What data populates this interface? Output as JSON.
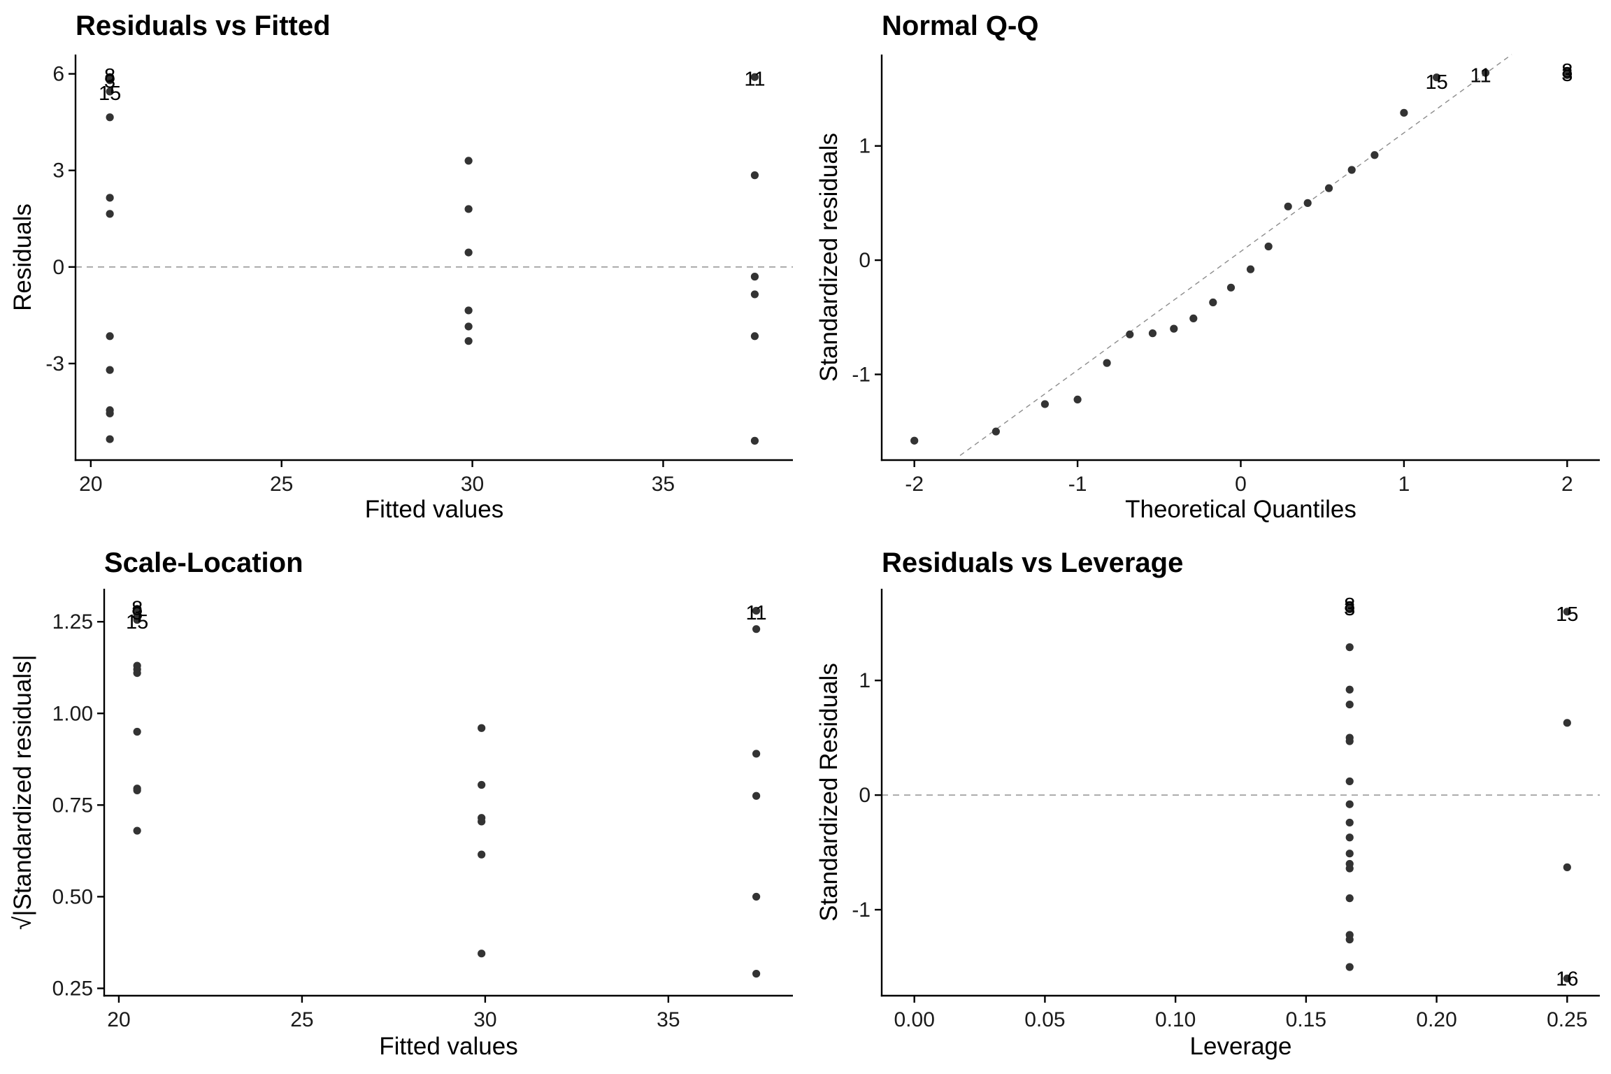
{
  "chart_data": [
    {
      "type": "scatter",
      "title": "Residuals vs Fitted",
      "xlabel": "Fitted values",
      "ylabel": "Residuals",
      "xlim": [
        19.6,
        38.4
      ],
      "ylim": [
        -6.0,
        6.6
      ],
      "xticks": [
        20,
        25,
        30,
        35
      ],
      "xtick_labels": [
        "20",
        "25",
        "30",
        "35"
      ],
      "yticks": [
        6,
        3,
        0,
        -3
      ],
      "ytick_labels": [
        "6",
        "3",
        "0",
        "-3"
      ],
      "reference_line": {
        "kind": "horizontal",
        "y": 0
      },
      "points": [
        {
          "x": 20.5,
          "y": 5.9
        },
        {
          "x": 20.5,
          "y": 5.8
        },
        {
          "x": 20.5,
          "y": 5.45
        },
        {
          "x": 20.5,
          "y": 4.65
        },
        {
          "x": 20.5,
          "y": 2.15
        },
        {
          "x": 20.5,
          "y": 1.65
        },
        {
          "x": 20.5,
          "y": -2.15
        },
        {
          "x": 20.5,
          "y": -3.2
        },
        {
          "x": 20.5,
          "y": -4.45
        },
        {
          "x": 20.5,
          "y": -4.55
        },
        {
          "x": 20.5,
          "y": -5.35
        },
        {
          "x": 29.9,
          "y": 3.3
        },
        {
          "x": 29.9,
          "y": 1.8
        },
        {
          "x": 29.9,
          "y": 0.45
        },
        {
          "x": 29.9,
          "y": -1.35
        },
        {
          "x": 29.9,
          "y": -1.85
        },
        {
          "x": 29.9,
          "y": -2.3
        },
        {
          "x": 37.4,
          "y": 5.9
        },
        {
          "x": 37.4,
          "y": 2.85
        },
        {
          "x": 37.4,
          "y": -0.3
        },
        {
          "x": 37.4,
          "y": -0.85
        },
        {
          "x": 37.4,
          "y": -2.15
        },
        {
          "x": 37.4,
          "y": -5.4
        }
      ],
      "point_labels": [
        {
          "text": "8",
          "x": 20.5,
          "y": 5.95
        },
        {
          "text": "3",
          "x": 20.5,
          "y": 5.78
        },
        {
          "text": "15",
          "x": 20.5,
          "y": 5.4
        },
        {
          "text": "11",
          "x": 37.4,
          "y": 5.85
        }
      ]
    },
    {
      "type": "scatter",
      "title": "Normal Q-Q",
      "xlabel": "Theoretical Quantiles",
      "ylabel": "Standardized residuals",
      "xlim": [
        -2.2,
        2.2
      ],
      "ylim": [
        -1.75,
        1.8
      ],
      "xticks": [
        -2,
        -1,
        0,
        1,
        2
      ],
      "xtick_labels": [
        "-2",
        "-1",
        "0",
        "1",
        "2"
      ],
      "yticks": [
        1,
        0,
        -1
      ],
      "ytick_labels": [
        "1",
        "0",
        "-1"
      ],
      "reference_line": {
        "kind": "line",
        "from": [
          -1.72,
          -1.71
        ],
        "to": [
          1.66,
          1.8
        ]
      },
      "points": [
        {
          "x": -2.0,
          "y": -1.58
        },
        {
          "x": -1.5,
          "y": -1.5
        },
        {
          "x": -1.2,
          "y": -1.26
        },
        {
          "x": -1.0,
          "y": -1.22
        },
        {
          "x": -0.82,
          "y": -0.9
        },
        {
          "x": -0.68,
          "y": -0.65
        },
        {
          "x": -0.54,
          "y": -0.64
        },
        {
          "x": -0.41,
          "y": -0.6
        },
        {
          "x": -0.29,
          "y": -0.51
        },
        {
          "x": -0.17,
          "y": -0.37
        },
        {
          "x": -0.06,
          "y": -0.24
        },
        {
          "x": 0.06,
          "y": -0.08
        },
        {
          "x": 0.17,
          "y": 0.12
        },
        {
          "x": 0.29,
          "y": 0.47
        },
        {
          "x": 0.41,
          "y": 0.5
        },
        {
          "x": 0.54,
          "y": 0.63
        },
        {
          "x": 0.68,
          "y": 0.79
        },
        {
          "x": 0.82,
          "y": 0.92
        },
        {
          "x": 1.0,
          "y": 1.29
        },
        {
          "x": 1.2,
          "y": 1.6
        },
        {
          "x": 1.5,
          "y": 1.64
        },
        {
          "x": 2.0,
          "y": 1.65
        },
        {
          "x": 2.0,
          "y": 1.62
        }
      ],
      "point_labels": [
        {
          "text": "15",
          "x": 1.2,
          "y": 1.56
        },
        {
          "text": "11",
          "x": 1.47,
          "y": 1.62
        },
        {
          "text": "8",
          "x": 2.0,
          "y": 1.66
        },
        {
          "text": "3",
          "x": 2.0,
          "y": 1.63
        }
      ]
    },
    {
      "type": "scatter",
      "title": "Scale-Location",
      "xlabel": "Fitted values",
      "ylabel": "√|Standardized residuals|",
      "xlim": [
        19.6,
        38.4
      ],
      "ylim": [
        0.23,
        1.34
      ],
      "xticks": [
        20,
        25,
        30,
        35
      ],
      "xtick_labels": [
        "20",
        "25",
        "30",
        "35"
      ],
      "yticks": [
        1.25,
        1.0,
        0.75,
        0.5,
        0.25
      ],
      "ytick_labels": [
        "1.25",
        "1.00",
        "0.75",
        "0.50",
        "0.25"
      ],
      "points": [
        {
          "x": 20.5,
          "y": 1.285
        },
        {
          "x": 20.5,
          "y": 1.27
        },
        {
          "x": 20.5,
          "y": 1.255
        },
        {
          "x": 20.5,
          "y": 1.13
        },
        {
          "x": 20.5,
          "y": 1.12
        },
        {
          "x": 20.5,
          "y": 1.11
        },
        {
          "x": 20.5,
          "y": 0.95
        },
        {
          "x": 20.5,
          "y": 0.795
        },
        {
          "x": 20.5,
          "y": 0.79
        },
        {
          "x": 20.5,
          "y": 0.68
        },
        {
          "x": 29.9,
          "y": 0.96
        },
        {
          "x": 29.9,
          "y": 0.805
        },
        {
          "x": 29.9,
          "y": 0.715
        },
        {
          "x": 29.9,
          "y": 0.705
        },
        {
          "x": 29.9,
          "y": 0.615
        },
        {
          "x": 29.9,
          "y": 0.345
        },
        {
          "x": 37.4,
          "y": 1.28
        },
        {
          "x": 37.4,
          "y": 1.23
        },
        {
          "x": 37.4,
          "y": 0.89
        },
        {
          "x": 37.4,
          "y": 0.775
        },
        {
          "x": 37.4,
          "y": 0.5
        },
        {
          "x": 37.4,
          "y": 0.29
        }
      ],
      "point_labels": [
        {
          "text": "8",
          "x": 20.5,
          "y": 1.288
        },
        {
          "text": "3",
          "x": 20.5,
          "y": 1.275
        },
        {
          "text": "15",
          "x": 20.5,
          "y": 1.25
        },
        {
          "text": "11",
          "x": 37.4,
          "y": 1.275
        }
      ]
    },
    {
      "type": "scatter",
      "title": "Residuals vs Leverage",
      "xlabel": "Leverage",
      "ylabel": "Standardized Residuals",
      "xlim": [
        -0.0125,
        0.2625
      ],
      "ylim": [
        -1.75,
        1.8
      ],
      "xticks": [
        0.0,
        0.05,
        0.1,
        0.15,
        0.2,
        0.25
      ],
      "xtick_labels": [
        "0.00",
        "0.05",
        "0.10",
        "0.15",
        "0.20",
        "0.25"
      ],
      "yticks": [
        1,
        0,
        -1
      ],
      "ytick_labels": [
        "1",
        "0",
        "-1"
      ],
      "reference_line": {
        "kind": "horizontal",
        "y": 0
      },
      "points": [
        {
          "x": 0.1667,
          "y": 1.65
        },
        {
          "x": 0.1667,
          "y": 1.62
        },
        {
          "x": 0.1667,
          "y": 1.29
        },
        {
          "x": 0.1667,
          "y": 0.92
        },
        {
          "x": 0.1667,
          "y": 0.79
        },
        {
          "x": 0.1667,
          "y": 0.5
        },
        {
          "x": 0.1667,
          "y": 0.47
        },
        {
          "x": 0.1667,
          "y": 0.12
        },
        {
          "x": 0.1667,
          "y": -0.08
        },
        {
          "x": 0.1667,
          "y": -0.24
        },
        {
          "x": 0.1667,
          "y": -0.37
        },
        {
          "x": 0.1667,
          "y": -0.51
        },
        {
          "x": 0.1667,
          "y": -0.6
        },
        {
          "x": 0.1667,
          "y": -0.64
        },
        {
          "x": 0.1667,
          "y": -0.9
        },
        {
          "x": 0.1667,
          "y": -1.22
        },
        {
          "x": 0.1667,
          "y": -1.26
        },
        {
          "x": 0.1667,
          "y": -1.5
        },
        {
          "x": 0.25,
          "y": 1.6
        },
        {
          "x": 0.25,
          "y": 0.63
        },
        {
          "x": 0.25,
          "y": -0.63
        },
        {
          "x": 0.25,
          "y": -1.6
        }
      ],
      "point_labels": [
        {
          "text": "8",
          "x": 0.1667,
          "y": 1.66
        },
        {
          "text": "3",
          "x": 0.1667,
          "y": 1.63
        },
        {
          "text": "15",
          "x": 0.25,
          "y": 1.58
        },
        {
          "text": "16",
          "x": 0.25,
          "y": -1.6
        }
      ]
    }
  ]
}
